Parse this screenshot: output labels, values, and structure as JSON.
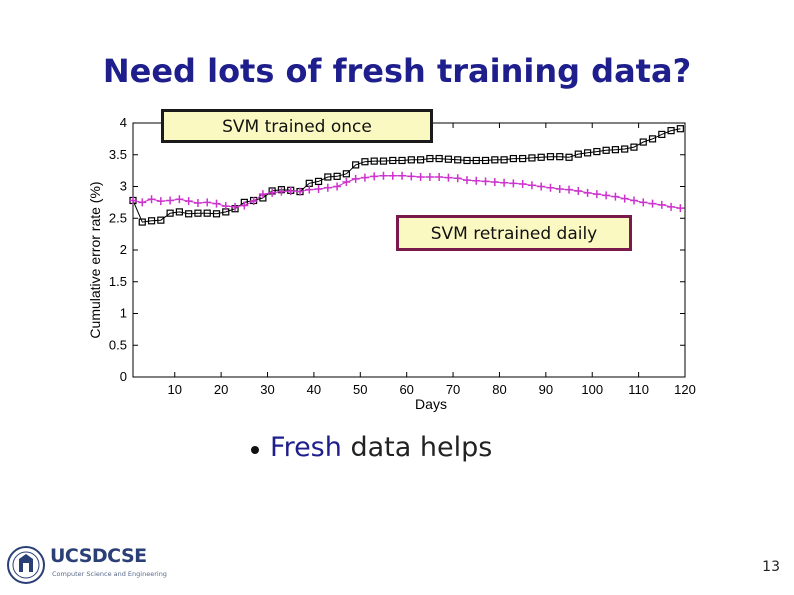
{
  "slide": {
    "title": "Need lots of fresh training data?",
    "bullet_emph": "Fresh",
    "bullet_rest": " data helps",
    "page_number": "13",
    "logo": {
      "name": "UCSDCSE",
      "subtitle": "Computer Science and Engineering"
    }
  },
  "callouts": {
    "once": "SVM trained once",
    "daily": "SVM retrained daily"
  },
  "chart_data": {
    "type": "line",
    "xlabel": "Days",
    "ylabel": "Cumulative error rate (%)",
    "xlim": [
      1,
      120
    ],
    "ylim": [
      0,
      4
    ],
    "xticks": [
      10,
      20,
      30,
      40,
      50,
      60,
      70,
      80,
      90,
      100,
      110,
      120
    ],
    "yticks": [
      0,
      0.5,
      1,
      1.5,
      2,
      2.5,
      3,
      3.5,
      4
    ],
    "ytick_labels": [
      "0",
      "0.5",
      "1",
      "1.5",
      "2",
      "2.5",
      "3",
      "3.5",
      "4"
    ],
    "grid": false,
    "series": [
      {
        "name": "SVM trained once",
        "marker": "square",
        "color": "#000000",
        "x": [
          1,
          3,
          5,
          7,
          9,
          11,
          13,
          15,
          17,
          19,
          21,
          23,
          25,
          27,
          29,
          31,
          33,
          35,
          37,
          39,
          41,
          43,
          45,
          47,
          49,
          51,
          53,
          55,
          57,
          59,
          61,
          63,
          65,
          67,
          69,
          71,
          73,
          75,
          77,
          79,
          81,
          83,
          85,
          87,
          89,
          91,
          93,
          95,
          97,
          99,
          101,
          103,
          105,
          107,
          109,
          111,
          113,
          115,
          117,
          119
        ],
        "values": [
          2.78,
          2.44,
          2.46,
          2.47,
          2.58,
          2.6,
          2.57,
          2.58,
          2.58,
          2.57,
          2.6,
          2.65,
          2.75,
          2.78,
          2.82,
          2.93,
          2.95,
          2.94,
          2.92,
          3.05,
          3.08,
          3.15,
          3.16,
          3.2,
          3.34,
          3.39,
          3.4,
          3.4,
          3.41,
          3.41,
          3.42,
          3.42,
          3.44,
          3.44,
          3.43,
          3.42,
          3.41,
          3.41,
          3.41,
          3.42,
          3.42,
          3.44,
          3.44,
          3.45,
          3.46,
          3.47,
          3.47,
          3.46,
          3.51,
          3.53,
          3.55,
          3.57,
          3.58,
          3.59,
          3.62,
          3.7,
          3.75,
          3.82,
          3.88,
          3.91
        ]
      },
      {
        "name": "SVM retrained daily",
        "marker": "plus",
        "color": "#cc33cc",
        "x": [
          1,
          3,
          5,
          7,
          9,
          11,
          13,
          15,
          17,
          19,
          21,
          23,
          25,
          27,
          29,
          31,
          33,
          35,
          37,
          39,
          41,
          43,
          45,
          47,
          49,
          51,
          53,
          55,
          57,
          59,
          61,
          63,
          65,
          67,
          69,
          71,
          73,
          75,
          77,
          79,
          81,
          83,
          85,
          87,
          89,
          91,
          93,
          95,
          97,
          99,
          101,
          103,
          105,
          107,
          109,
          111,
          113,
          115,
          117,
          119
        ],
        "values": [
          2.78,
          2.75,
          2.8,
          2.77,
          2.78,
          2.8,
          2.77,
          2.74,
          2.75,
          2.73,
          2.69,
          2.68,
          2.7,
          2.77,
          2.88,
          2.9,
          2.92,
          2.93,
          2.92,
          2.95,
          2.96,
          2.98,
          3.0,
          3.07,
          3.12,
          3.14,
          3.16,
          3.17,
          3.17,
          3.17,
          3.16,
          3.15,
          3.15,
          3.15,
          3.14,
          3.13,
          3.1,
          3.09,
          3.08,
          3.07,
          3.06,
          3.05,
          3.04,
          3.02,
          3.0,
          2.98,
          2.96,
          2.95,
          2.93,
          2.9,
          2.88,
          2.86,
          2.84,
          2.81,
          2.78,
          2.75,
          2.73,
          2.71,
          2.68,
          2.66
        ]
      }
    ]
  }
}
